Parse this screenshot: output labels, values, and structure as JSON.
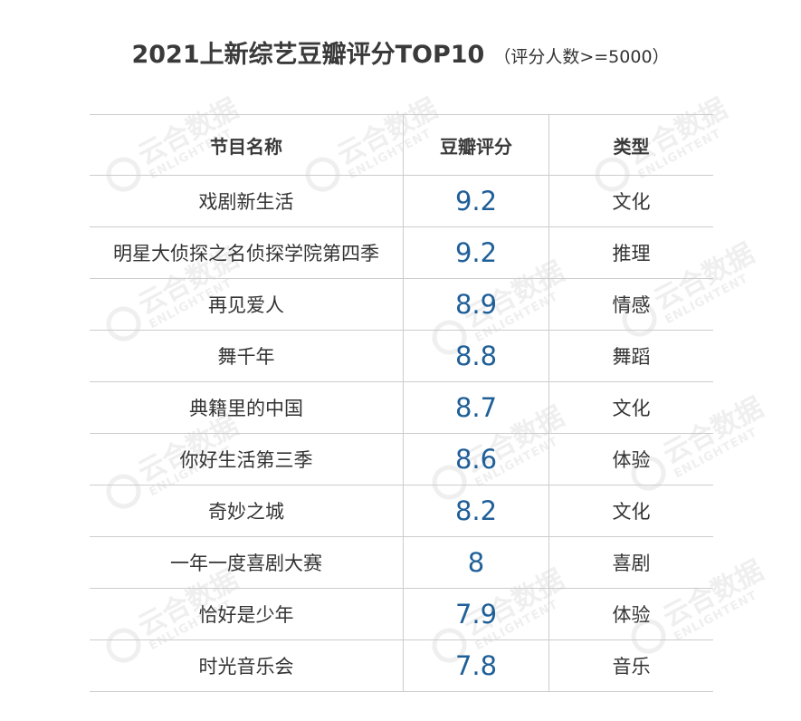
{
  "title": "2021上新综艺豆瓣评分TOP10",
  "subtitle": "（评分人数>=5000）",
  "headers": {
    "name": "节目名称",
    "score": "豆瓣评分",
    "type": "类型"
  },
  "score_color": "#1f5f98",
  "watermark": {
    "cn": "云合数据",
    "en": "ENLIGHTENT"
  },
  "rows": [
    {
      "name": "戏剧新生活",
      "score": "9.2",
      "type": "文化"
    },
    {
      "name": "明星大侦探之名侦探学院第四季",
      "score": "9.2",
      "type": "推理"
    },
    {
      "name": "再见爱人",
      "score": "8.9",
      "type": "情感"
    },
    {
      "name": "舞千年",
      "score": "8.8",
      "type": "舞蹈"
    },
    {
      "name": "典籍里的中国",
      "score": "8.7",
      "type": "文化"
    },
    {
      "name": "你好生活第三季",
      "score": "8.6",
      "type": "体验"
    },
    {
      "name": "奇妙之城",
      "score": "8.2",
      "type": "文化"
    },
    {
      "name": "一年一度喜剧大赛",
      "score": "8",
      "type": "喜剧"
    },
    {
      "name": "恰好是少年",
      "score": "7.9",
      "type": "体验"
    },
    {
      "name": "时光音乐会",
      "score": "7.8",
      "type": "音乐"
    }
  ],
  "chart_data": {
    "type": "table",
    "title": "2021上新综艺豆瓣评分TOP10",
    "subtitle": "（评分人数>=5000）",
    "columns": [
      "节目名称",
      "豆瓣评分",
      "类型"
    ],
    "categories": [
      "戏剧新生活",
      "明星大侦探之名侦探学院第四季",
      "再见爱人",
      "舞千年",
      "典籍里的中国",
      "你好生活第三季",
      "奇妙之城",
      "一年一度喜剧大赛",
      "恰好是少年",
      "时光音乐会"
    ],
    "values": [
      9.2,
      9.2,
      8.9,
      8.8,
      8.7,
      8.6,
      8.2,
      8,
      7.9,
      7.8
    ],
    "types": [
      "文化",
      "推理",
      "情感",
      "舞蹈",
      "文化",
      "体验",
      "文化",
      "喜剧",
      "体验",
      "音乐"
    ]
  }
}
